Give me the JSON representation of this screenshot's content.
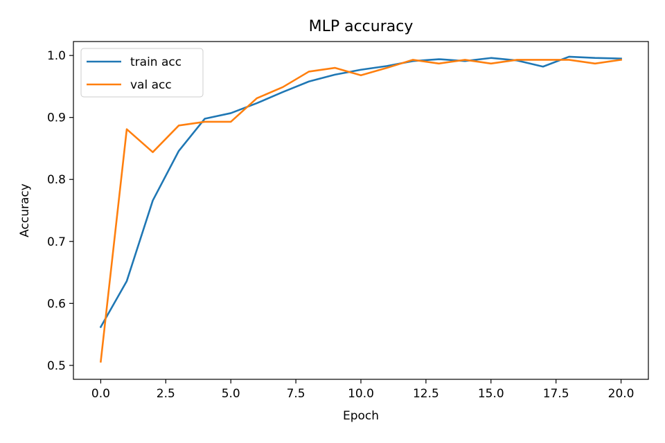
{
  "chart_data": {
    "type": "line",
    "title": "MLP accuracy",
    "xlabel": "Epoch",
    "ylabel": "Accuracy",
    "xlim": [
      -1.05,
      21.05
    ],
    "ylim": [
      0.4775,
      1.0225
    ],
    "xticks": [
      0,
      2.5,
      5,
      7.5,
      10,
      12.5,
      15,
      17.5,
      20
    ],
    "xtick_labels": [
      "0.0",
      "2.5",
      "5.0",
      "7.5",
      "10.0",
      "12.5",
      "15.0",
      "17.5",
      "20.0"
    ],
    "yticks": [
      0.5,
      0.6,
      0.7,
      0.8,
      0.9,
      1.0
    ],
    "ytick_labels": [
      "0.5",
      "0.6",
      "0.7",
      "0.8",
      "0.9",
      "1.0"
    ],
    "grid": false,
    "legend": "top-left",
    "x": [
      0,
      1,
      2,
      3,
      4,
      5,
      6,
      7,
      8,
      9,
      10,
      11,
      12,
      13,
      14,
      15,
      16,
      17,
      18,
      19,
      20
    ],
    "series": [
      {
        "name": "train acc",
        "color": "#1f77b4",
        "values": [
          0.562,
          0.636,
          0.766,
          0.846,
          0.898,
          0.907,
          0.923,
          0.941,
          0.958,
          0.969,
          0.977,
          0.983,
          0.991,
          0.994,
          0.991,
          0.996,
          0.992,
          0.982,
          0.998,
          0.996,
          0.995
        ]
      },
      {
        "name": "val acc",
        "color": "#ff7f0e",
        "values": [
          0.506,
          0.881,
          0.844,
          0.887,
          0.893,
          0.893,
          0.931,
          0.949,
          0.974,
          0.98,
          0.968,
          0.98,
          0.993,
          0.987,
          0.993,
          0.987,
          0.993,
          0.993,
          0.993,
          0.987,
          0.993
        ]
      }
    ]
  }
}
